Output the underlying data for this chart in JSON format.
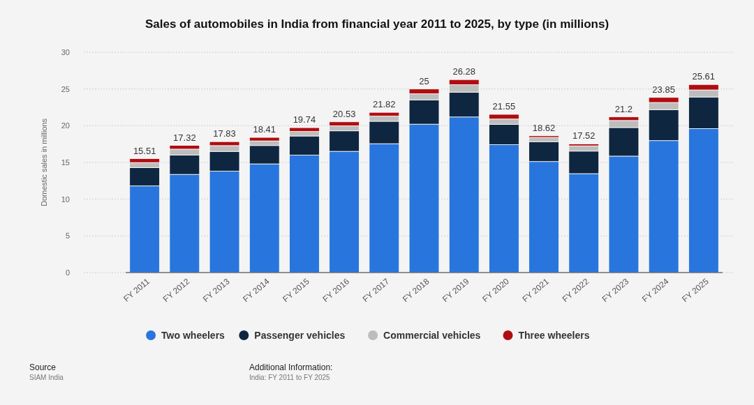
{
  "chart_data": {
    "type": "bar",
    "title": "Sales of automobiles in India from financial year 2011 to 2025, by type (in millions)",
    "ylabel": "Domestic sales in millions",
    "categories": [
      "FY 2011",
      "FY 2012",
      "FY 2013",
      "FY 2014",
      "FY 2015",
      "FY 2016",
      "FY 2017",
      "FY 2018",
      "FY 2019",
      "FY 2020",
      "FY 2021",
      "FY 2022",
      "FY 2023",
      "FY 2024",
      "FY 2025"
    ],
    "stacked": true,
    "series": [
      {
        "name": "Two wheelers",
        "color": "#2876dd",
        "values": [
          11.8,
          13.37,
          13.81,
          14.8,
          16.0,
          16.51,
          17.55,
          20.21,
          21.19,
          17.42,
          15.12,
          13.47,
          15.86,
          17.97,
          19.61
        ]
      },
      {
        "name": "Passenger vehicles",
        "color": "#0f2640",
        "values": [
          2.5,
          2.63,
          2.69,
          2.5,
          2.6,
          2.79,
          3.05,
          3.29,
          3.38,
          2.77,
          2.71,
          3.07,
          3.89,
          4.22,
          4.3
        ]
      },
      {
        "name": "Commercial vehicles",
        "color": "#bdbdbd",
        "values": [
          0.68,
          0.81,
          0.79,
          0.63,
          0.61,
          0.69,
          0.71,
          0.86,
          1.01,
          0.72,
          0.57,
          0.72,
          0.96,
          0.97,
          0.96
        ]
      },
      {
        "name": "Three wheelers",
        "color": "#b00d10",
        "values": [
          0.53,
          0.51,
          0.54,
          0.48,
          0.53,
          0.54,
          0.51,
          0.64,
          0.7,
          0.64,
          0.22,
          0.26,
          0.49,
          0.69,
          0.74
        ]
      }
    ],
    "totals": [
      "15.51",
      "17.32",
      "17.83",
      "18.41",
      "19.74",
      "20.53",
      "21.82",
      "25",
      "26.28",
      "21.55",
      "18.62",
      "17.52",
      "21.2",
      "23.85",
      "25.61"
    ],
    "ylim": [
      0,
      30
    ],
    "yticks": [
      0,
      5,
      10,
      15,
      20,
      25,
      30
    ],
    "grid": "y",
    "legend": "bottom",
    "annotations": [
      "Source",
      "SIAM India",
      "Additional Information:",
      "India: FY 2011 to FY 2025"
    ]
  }
}
